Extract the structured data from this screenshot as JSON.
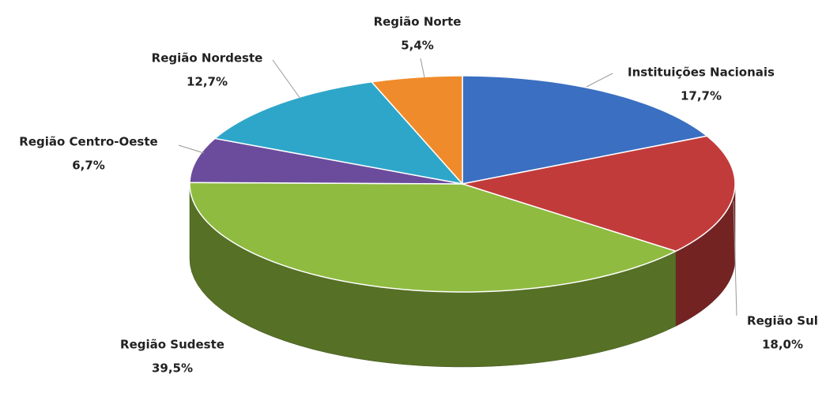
{
  "chart_data": {
    "type": "pie",
    "categories": [
      "Instituições Nacionais",
      "Região Sul",
      "Região Sudeste",
      "Região Centro-Oeste",
      "Região Nordeste",
      "Região Norte"
    ],
    "values": [
      17.7,
      18.0,
      39.5,
      6.7,
      12.7,
      5.4
    ],
    "value_labels": [
      "17,7%",
      "18,0%",
      "39,5%",
      "6,7%",
      "12,7%",
      "5,4%"
    ],
    "colors": [
      "#3b6fc1",
      "#c23b3b",
      "#8fbb40",
      "#6b4c9c",
      "#2ea6c9",
      "#f08b2b"
    ]
  }
}
